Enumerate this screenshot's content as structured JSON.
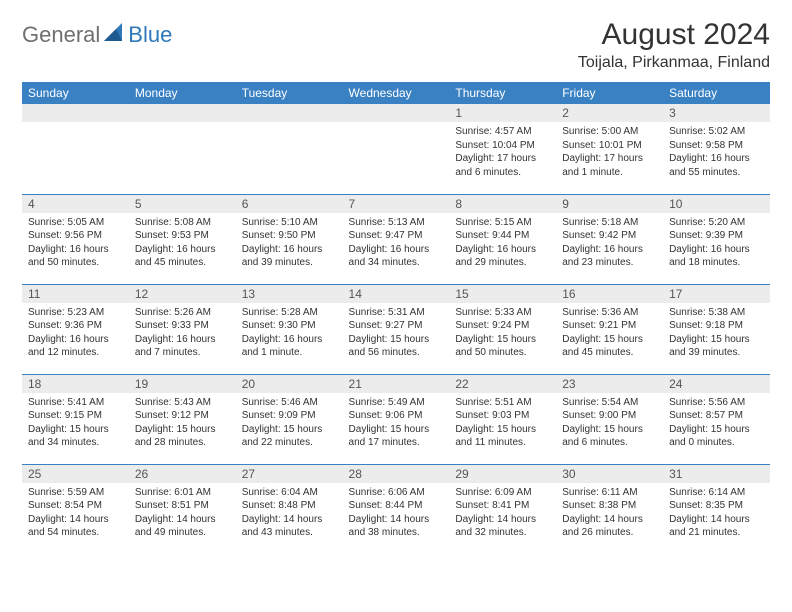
{
  "brand": {
    "part1": "General",
    "part2": "Blue"
  },
  "title": "August 2024",
  "location": "Toijala, Pirkanmaa, Finland",
  "colors": {
    "header_bg": "#3a81c4",
    "header_text": "#ffffff",
    "daynum_bg": "#ececec",
    "border": "#3a81c4",
    "brand_gray": "#707070",
    "brand_blue": "#2f79b9"
  },
  "day_headers": [
    "Sunday",
    "Monday",
    "Tuesday",
    "Wednesday",
    "Thursday",
    "Friday",
    "Saturday"
  ],
  "weeks": [
    [
      {
        "n": "",
        "sr": "",
        "ss": "",
        "dl": ""
      },
      {
        "n": "",
        "sr": "",
        "ss": "",
        "dl": ""
      },
      {
        "n": "",
        "sr": "",
        "ss": "",
        "dl": ""
      },
      {
        "n": "",
        "sr": "",
        "ss": "",
        "dl": ""
      },
      {
        "n": "1",
        "sr": "Sunrise: 4:57 AM",
        "ss": "Sunset: 10:04 PM",
        "dl": "Daylight: 17 hours and 6 minutes."
      },
      {
        "n": "2",
        "sr": "Sunrise: 5:00 AM",
        "ss": "Sunset: 10:01 PM",
        "dl": "Daylight: 17 hours and 1 minute."
      },
      {
        "n": "3",
        "sr": "Sunrise: 5:02 AM",
        "ss": "Sunset: 9:58 PM",
        "dl": "Daylight: 16 hours and 55 minutes."
      }
    ],
    [
      {
        "n": "4",
        "sr": "Sunrise: 5:05 AM",
        "ss": "Sunset: 9:56 PM",
        "dl": "Daylight: 16 hours and 50 minutes."
      },
      {
        "n": "5",
        "sr": "Sunrise: 5:08 AM",
        "ss": "Sunset: 9:53 PM",
        "dl": "Daylight: 16 hours and 45 minutes."
      },
      {
        "n": "6",
        "sr": "Sunrise: 5:10 AM",
        "ss": "Sunset: 9:50 PM",
        "dl": "Daylight: 16 hours and 39 minutes."
      },
      {
        "n": "7",
        "sr": "Sunrise: 5:13 AM",
        "ss": "Sunset: 9:47 PM",
        "dl": "Daylight: 16 hours and 34 minutes."
      },
      {
        "n": "8",
        "sr": "Sunrise: 5:15 AM",
        "ss": "Sunset: 9:44 PM",
        "dl": "Daylight: 16 hours and 29 minutes."
      },
      {
        "n": "9",
        "sr": "Sunrise: 5:18 AM",
        "ss": "Sunset: 9:42 PM",
        "dl": "Daylight: 16 hours and 23 minutes."
      },
      {
        "n": "10",
        "sr": "Sunrise: 5:20 AM",
        "ss": "Sunset: 9:39 PM",
        "dl": "Daylight: 16 hours and 18 minutes."
      }
    ],
    [
      {
        "n": "11",
        "sr": "Sunrise: 5:23 AM",
        "ss": "Sunset: 9:36 PM",
        "dl": "Daylight: 16 hours and 12 minutes."
      },
      {
        "n": "12",
        "sr": "Sunrise: 5:26 AM",
        "ss": "Sunset: 9:33 PM",
        "dl": "Daylight: 16 hours and 7 minutes."
      },
      {
        "n": "13",
        "sr": "Sunrise: 5:28 AM",
        "ss": "Sunset: 9:30 PM",
        "dl": "Daylight: 16 hours and 1 minute."
      },
      {
        "n": "14",
        "sr": "Sunrise: 5:31 AM",
        "ss": "Sunset: 9:27 PM",
        "dl": "Daylight: 15 hours and 56 minutes."
      },
      {
        "n": "15",
        "sr": "Sunrise: 5:33 AM",
        "ss": "Sunset: 9:24 PM",
        "dl": "Daylight: 15 hours and 50 minutes."
      },
      {
        "n": "16",
        "sr": "Sunrise: 5:36 AM",
        "ss": "Sunset: 9:21 PM",
        "dl": "Daylight: 15 hours and 45 minutes."
      },
      {
        "n": "17",
        "sr": "Sunrise: 5:38 AM",
        "ss": "Sunset: 9:18 PM",
        "dl": "Daylight: 15 hours and 39 minutes."
      }
    ],
    [
      {
        "n": "18",
        "sr": "Sunrise: 5:41 AM",
        "ss": "Sunset: 9:15 PM",
        "dl": "Daylight: 15 hours and 34 minutes."
      },
      {
        "n": "19",
        "sr": "Sunrise: 5:43 AM",
        "ss": "Sunset: 9:12 PM",
        "dl": "Daylight: 15 hours and 28 minutes."
      },
      {
        "n": "20",
        "sr": "Sunrise: 5:46 AM",
        "ss": "Sunset: 9:09 PM",
        "dl": "Daylight: 15 hours and 22 minutes."
      },
      {
        "n": "21",
        "sr": "Sunrise: 5:49 AM",
        "ss": "Sunset: 9:06 PM",
        "dl": "Daylight: 15 hours and 17 minutes."
      },
      {
        "n": "22",
        "sr": "Sunrise: 5:51 AM",
        "ss": "Sunset: 9:03 PM",
        "dl": "Daylight: 15 hours and 11 minutes."
      },
      {
        "n": "23",
        "sr": "Sunrise: 5:54 AM",
        "ss": "Sunset: 9:00 PM",
        "dl": "Daylight: 15 hours and 6 minutes."
      },
      {
        "n": "24",
        "sr": "Sunrise: 5:56 AM",
        "ss": "Sunset: 8:57 PM",
        "dl": "Daylight: 15 hours and 0 minutes."
      }
    ],
    [
      {
        "n": "25",
        "sr": "Sunrise: 5:59 AM",
        "ss": "Sunset: 8:54 PM",
        "dl": "Daylight: 14 hours and 54 minutes."
      },
      {
        "n": "26",
        "sr": "Sunrise: 6:01 AM",
        "ss": "Sunset: 8:51 PM",
        "dl": "Daylight: 14 hours and 49 minutes."
      },
      {
        "n": "27",
        "sr": "Sunrise: 6:04 AM",
        "ss": "Sunset: 8:48 PM",
        "dl": "Daylight: 14 hours and 43 minutes."
      },
      {
        "n": "28",
        "sr": "Sunrise: 6:06 AM",
        "ss": "Sunset: 8:44 PM",
        "dl": "Daylight: 14 hours and 38 minutes."
      },
      {
        "n": "29",
        "sr": "Sunrise: 6:09 AM",
        "ss": "Sunset: 8:41 PM",
        "dl": "Daylight: 14 hours and 32 minutes."
      },
      {
        "n": "30",
        "sr": "Sunrise: 6:11 AM",
        "ss": "Sunset: 8:38 PM",
        "dl": "Daylight: 14 hours and 26 minutes."
      },
      {
        "n": "31",
        "sr": "Sunrise: 6:14 AM",
        "ss": "Sunset: 8:35 PM",
        "dl": "Daylight: 14 hours and 21 minutes."
      }
    ]
  ]
}
